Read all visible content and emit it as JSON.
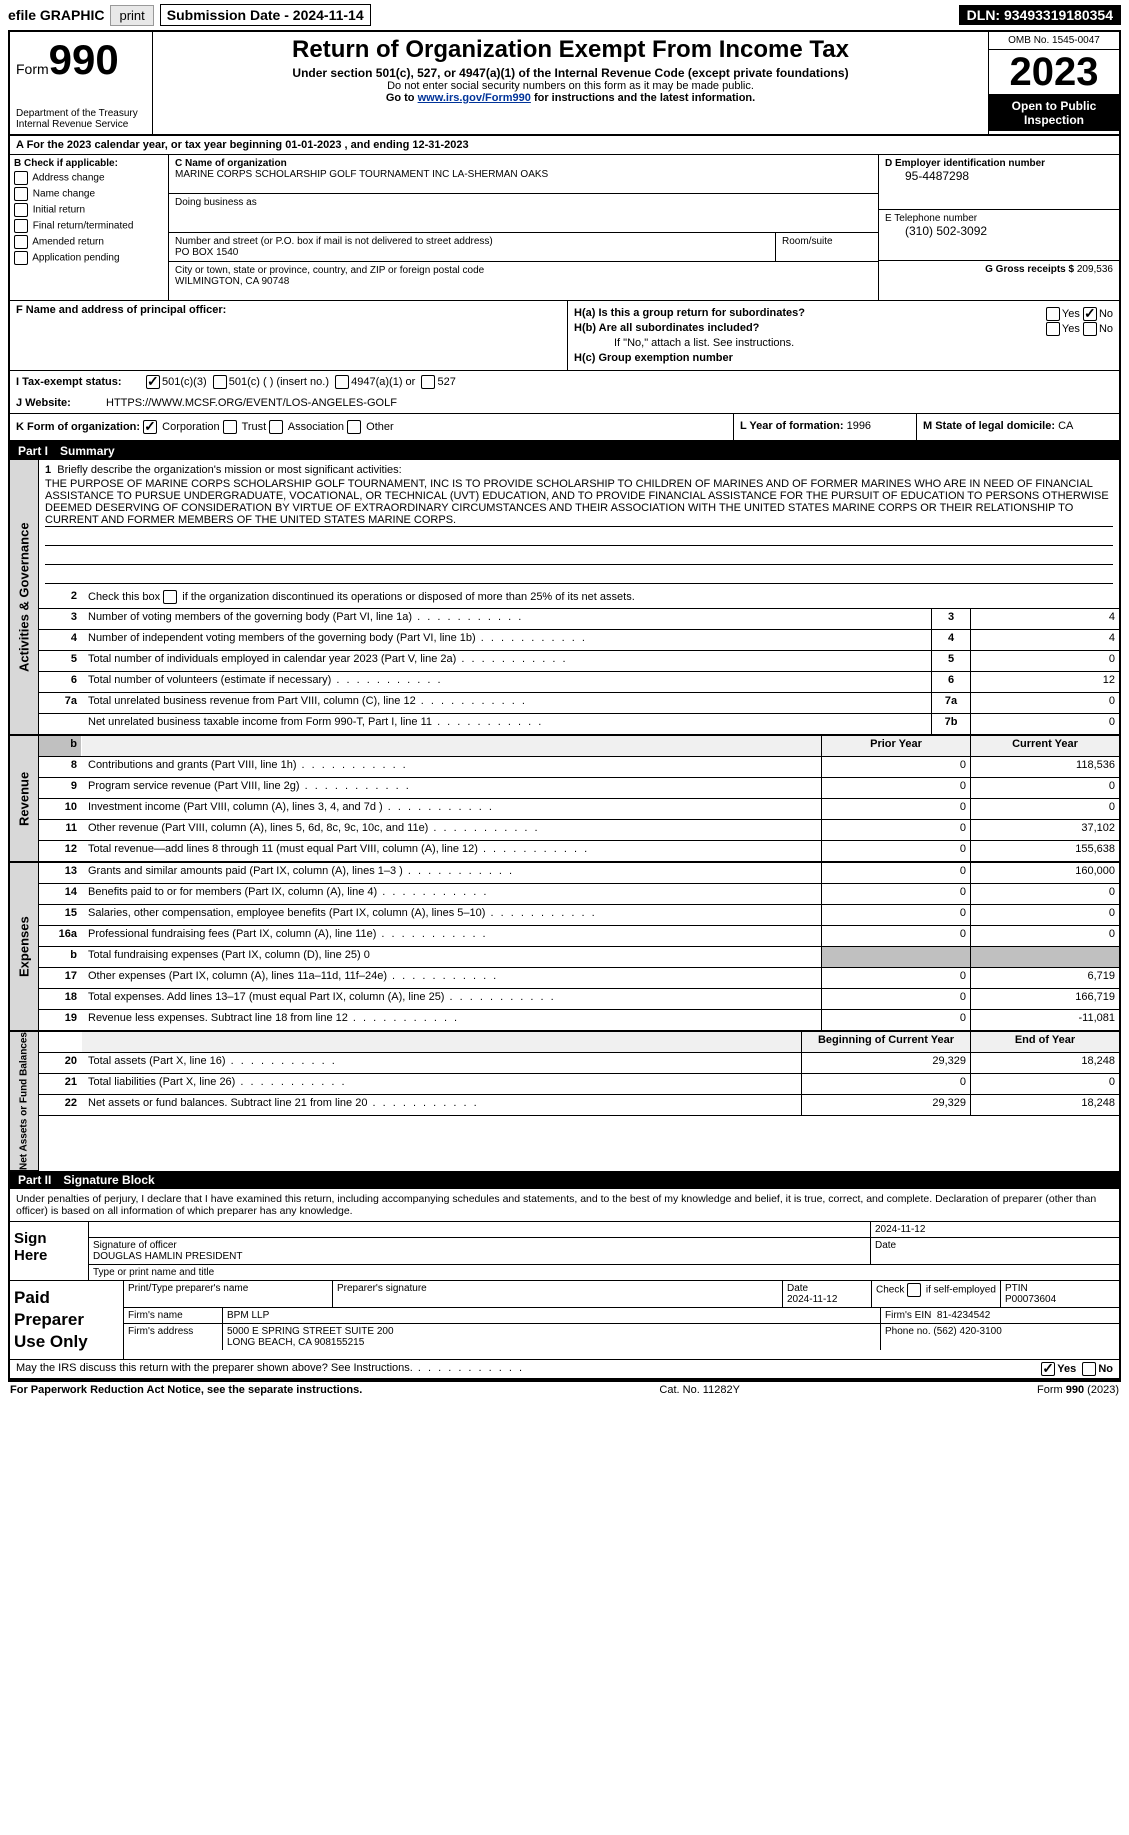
{
  "topbar": {
    "efile": "efile GRAPHIC",
    "print": "print",
    "sub_date_label": "Submission Date - 2024-11-14",
    "dln": "DLN: 93493319180354"
  },
  "header": {
    "form_word": "Form",
    "form_num": "990",
    "dept": "Department of the Treasury\nInternal Revenue Service",
    "title": "Return of Organization Exempt From Income Tax",
    "subtitle": "Under section 501(c), 527, or 4947(a)(1) of the Internal Revenue Code (except private foundations)",
    "note1": "Do not enter social security numbers on this form as it may be made public.",
    "note2_pre": "Go to ",
    "note2_link": "www.irs.gov/Form990",
    "note2_post": " for instructions and the latest information.",
    "omb": "OMB No. 1545-0047",
    "year": "2023",
    "open_pub": "Open to Public Inspection"
  },
  "a": {
    "text": "A For the 2023 calendar year, or tax year beginning 01-01-2023   , and ending 12-31-2023"
  },
  "b": {
    "label": "B Check if applicable:",
    "opts": [
      "Address change",
      "Name change",
      "Initial return",
      "Final return/terminated",
      "Amended return",
      "Application pending"
    ]
  },
  "c": {
    "name_label": "C Name of organization",
    "name": "MARINE CORPS SCHOLARSHIP GOLF TOURNAMENT INC LA-SHERMAN OAKS",
    "dba_label": "Doing business as",
    "addr_label": "Number and street (or P.O. box if mail is not delivered to street address)",
    "room_label": "Room/suite",
    "addr": "PO BOX 1540",
    "city_label": "City or town, state or province, country, and ZIP or foreign postal code",
    "city": "WILMINGTON, CA  90748"
  },
  "d": {
    "ein_label": "D Employer identification number",
    "ein": "95-4487298",
    "tel_label": "E Telephone number",
    "tel": "(310) 502-3092",
    "gross_label": "G Gross receipts $",
    "gross": "209,536"
  },
  "f": {
    "label": "F  Name and address of principal officer:"
  },
  "h": {
    "a": "H(a)  Is this a group return for subordinates?",
    "a_no": "No",
    "b": "H(b)  Are all subordinates included?",
    "b_note": "If \"No,\" attach a list. See instructions.",
    "c": "H(c)  Group exemption number"
  },
  "i": {
    "label": "I   Tax-exempt status:",
    "opt1": "501(c)(3)",
    "opt2": "501(c) (  ) (insert no.)",
    "opt3": "4947(a)(1) or",
    "opt4": "527"
  },
  "j": {
    "label": "J   Website:",
    "val": "HTTPS://WWW.MCSF.ORG/EVENT/LOS-ANGELES-GOLF"
  },
  "k": {
    "label": "K Form of organization:",
    "opts": [
      "Corporation",
      "Trust",
      "Association",
      "Other"
    ],
    "l_label": "L Year of formation:",
    "l_val": "1996",
    "m_label": "M State of legal domicile:",
    "m_val": "CA"
  },
  "part1": {
    "title": "Part I",
    "name": "Summary",
    "mission_label": "Briefly describe the organization's mission or most significant activities:",
    "mission": "THE PURPOSE OF MARINE CORPS SCHOLARSHIP GOLF TOURNAMENT, INC IS TO PROVIDE SCHOLARSHIP TO CHILDREN OF MARINES AND OF FORMER MARINES WHO ARE IN NEED OF FINANCIAL ASSISTANCE TO PURSUE UNDERGRADUATE, VOCATIONAL, OR TECHNICAL (UVT) EDUCATION, AND TO PROVIDE FINANCIAL ASSISTANCE FOR THE PURSUIT OF EDUCATION TO PERSONS OTHERWISE DEEMED DESERVING OF CONSIDERATION BY VIRTUE OF EXTRAORDINARY CIRCUMSTANCES AND THEIR ASSOCIATION WITH THE UNITED STATES MARINE CORPS OR THEIR RELATIONSHIP TO CURRENT AND FORMER MEMBERS OF THE UNITED STATES MARINE CORPS.",
    "line2": "Check this box    if the organization discontinued its operations or disposed of more than 25% of its net assets.",
    "lines_simple": [
      {
        "n": "3",
        "t": "Number of voting members of the governing body (Part VI, line 1a)",
        "b": "3",
        "v": "4"
      },
      {
        "n": "4",
        "t": "Number of independent voting members of the governing body (Part VI, line 1b)",
        "b": "4",
        "v": "4"
      },
      {
        "n": "5",
        "t": "Total number of individuals employed in calendar year 2023 (Part V, line 2a)",
        "b": "5",
        "v": "0"
      },
      {
        "n": "6",
        "t": "Total number of volunteers (estimate if necessary)",
        "b": "6",
        "v": "12"
      },
      {
        "n": "7a",
        "t": "Total unrelated business revenue from Part VIII, column (C), line 12",
        "b": "7a",
        "v": "0"
      },
      {
        "n": "",
        "t": "Net unrelated business taxable income from Form 990-T, Part I, line 11",
        "b": "7b",
        "v": "0"
      }
    ],
    "col_prior": "Prior Year",
    "col_curr": "Current Year",
    "revenue": [
      {
        "n": "8",
        "t": "Contributions and grants (Part VIII, line 1h)",
        "p": "0",
        "c": "118,536"
      },
      {
        "n": "9",
        "t": "Program service revenue (Part VIII, line 2g)",
        "p": "0",
        "c": "0"
      },
      {
        "n": "10",
        "t": "Investment income (Part VIII, column (A), lines 3, 4, and 7d )",
        "p": "0",
        "c": "0"
      },
      {
        "n": "11",
        "t": "Other revenue (Part VIII, column (A), lines 5, 6d, 8c, 9c, 10c, and 11e)",
        "p": "0",
        "c": "37,102"
      },
      {
        "n": "12",
        "t": "Total revenue—add lines 8 through 11 (must equal Part VIII, column (A), line 12)",
        "p": "0",
        "c": "155,638"
      }
    ],
    "expenses": [
      {
        "n": "13",
        "t": "Grants and similar amounts paid (Part IX, column (A), lines 1–3 )",
        "p": "0",
        "c": "160,000"
      },
      {
        "n": "14",
        "t": "Benefits paid to or for members (Part IX, column (A), line 4)",
        "p": "0",
        "c": "0"
      },
      {
        "n": "15",
        "t": "Salaries, other compensation, employee benefits (Part IX, column (A), lines 5–10)",
        "p": "0",
        "c": "0"
      },
      {
        "n": "16a",
        "t": "Professional fundraising fees (Part IX, column (A), line 11e)",
        "p": "0",
        "c": "0"
      },
      {
        "n": "b",
        "t": "Total fundraising expenses (Part IX, column (D), line 25) 0",
        "p": "",
        "c": "",
        "shaded": true
      },
      {
        "n": "17",
        "t": "Other expenses (Part IX, column (A), lines 11a–11d, 11f–24e)",
        "p": "0",
        "c": "6,719"
      },
      {
        "n": "18",
        "t": "Total expenses. Add lines 13–17 (must equal Part IX, column (A), line 25)",
        "p": "0",
        "c": "166,719"
      },
      {
        "n": "19",
        "t": "Revenue less expenses. Subtract line 18 from line 12",
        "p": "0",
        "c": "-11,081"
      }
    ],
    "col_begin": "Beginning of Current Year",
    "col_end": "End of Year",
    "assets": [
      {
        "n": "20",
        "t": "Total assets (Part X, line 16)",
        "b": "29,329",
        "e": "18,248"
      },
      {
        "n": "21",
        "t": "Total liabilities (Part X, line 26)",
        "b": "0",
        "e": "0"
      },
      {
        "n": "22",
        "t": "Net assets or fund balances. Subtract line 21 from line 20",
        "b": "29,329",
        "e": "18,248"
      }
    ],
    "vert1": "Activities & Governance",
    "vert2": "Revenue",
    "vert3": "Expenses",
    "vert4": "Net Assets or Fund Balances"
  },
  "part2": {
    "title": "Part II",
    "name": "Signature Block",
    "decl": "Under penalties of perjury, I declare that I have examined this return, including accompanying schedules and statements, and to the best of my knowledge and belief, it is true, correct, and complete. Declaration of preparer (other than officer) is based on all information of which preparer has any knowledge.",
    "sign_here": "Sign Here",
    "sig_of_officer": "Signature of officer",
    "date": "Date",
    "sig_date": "2024-11-12",
    "officer_name": "DOUGLAS HAMLIN  PRESIDENT",
    "type_name": "Type or print name and title",
    "paid_label": "Paid Preparer Use Only",
    "prep_name_label": "Print/Type preparer's name",
    "prep_sig_label": "Preparer's signature",
    "prep_date_label": "Date",
    "prep_date": "2024-11-12",
    "check_if": "Check        if self-employed",
    "ptin_label": "PTIN",
    "ptin": "P00073604",
    "firm_name_label": "Firm's name",
    "firm_name": "BPM LLP",
    "firm_ein_label": "Firm's EIN",
    "firm_ein": "81-4234542",
    "firm_addr_label": "Firm's address",
    "firm_addr": "5000 E SPRING STREET SUITE 200",
    "firm_city": "LONG BEACH, CA  908155215",
    "phone_label": "Phone no.",
    "phone": "(562) 420-3100",
    "irs_discuss": "May the IRS discuss this return with the preparer shown above? See Instructions.",
    "yes": "Yes",
    "no": "No"
  },
  "footer": {
    "paperwork": "For Paperwork Reduction Act Notice, see the separate instructions.",
    "cat": "Cat. No. 11282Y",
    "form": "Form 990 (2023)"
  }
}
